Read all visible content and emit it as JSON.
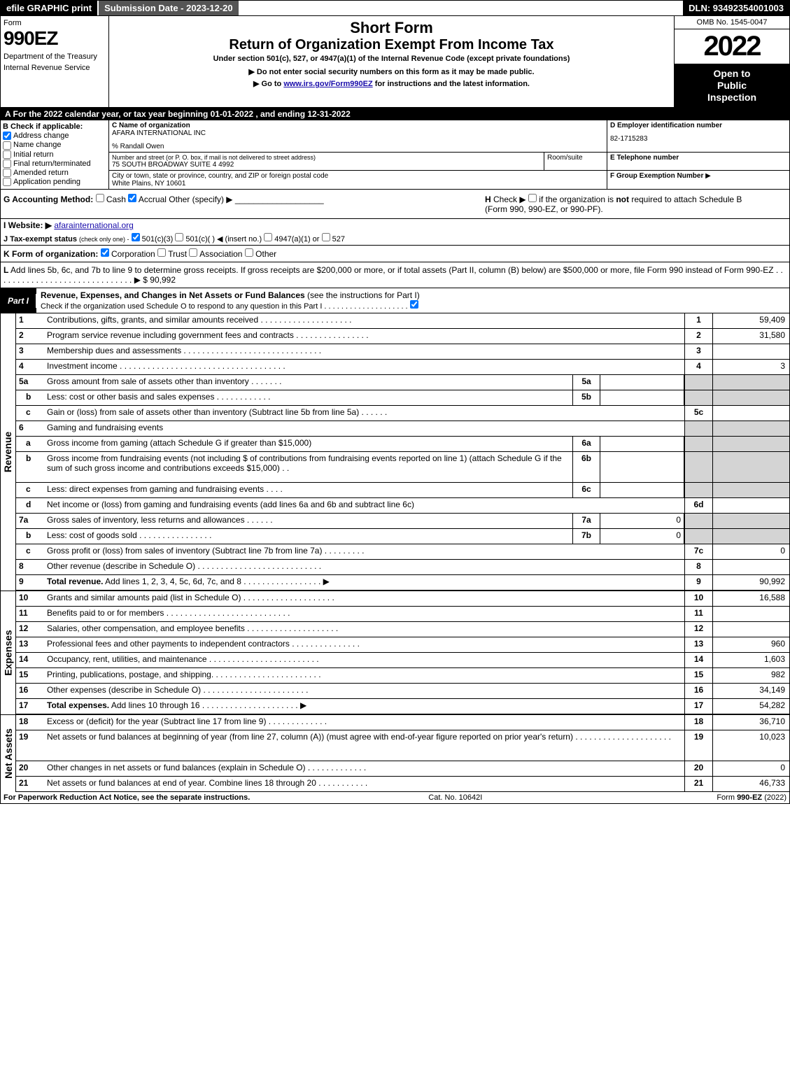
{
  "top_bar": {
    "efile": "efile GRAPHIC print",
    "submission_date": "Submission Date - 2023-12-20",
    "dln": "DLN: 93492354001003"
  },
  "header": {
    "form_label": "Form",
    "form_number": "990EZ",
    "dept1": "Department of the Treasury",
    "dept2": "Internal Revenue Service",
    "short_form": "Short Form",
    "return_title": "Return of Organization Exempt From Income Tax",
    "under": "Under section 501(c), 527, or 4947(a)(1) of the Internal Revenue Code (except private foundations)",
    "donot": "Do not enter social security numbers on this form as it may be made public.",
    "goto_prefix": "Go to ",
    "goto_link": "www.irs.gov/Form990EZ",
    "goto_suffix": " for instructions and the latest information.",
    "omb": "OMB No. 1545-0047",
    "year": "2022",
    "open": "Open to",
    "public": "Public",
    "inspection": "Inspection"
  },
  "section_a": "A  For the 2022 calendar year, or tax year beginning 01-01-2022  , and ending 12-31-2022",
  "section_b": {
    "label": "B  Check if applicable:",
    "items": [
      {
        "label": "Address change",
        "checked": true
      },
      {
        "label": "Name change",
        "checked": false
      },
      {
        "label": "Initial return",
        "checked": false
      },
      {
        "label": "Final return/terminated",
        "checked": false
      },
      {
        "label": "Amended return",
        "checked": false
      },
      {
        "label": "Application pending",
        "checked": false
      }
    ]
  },
  "section_c": {
    "label": "C Name of organization",
    "org_name": "AFARA INTERNATIONAL INC",
    "care_of": "% Randall Owen",
    "addr_label": "Number and street (or P. O. box, if mail is not delivered to street address)",
    "addr": "75 SOUTH BROADWAY SUITE 4 4992",
    "room_label": "Room/suite",
    "room": "",
    "city_label": "City or town, state or province, country, and ZIP or foreign postal code",
    "city": "White Plains, NY  10601"
  },
  "section_d": {
    "label": "D Employer identification number",
    "ein": "82-1715283"
  },
  "section_e": {
    "label": "E Telephone number",
    "phone": ""
  },
  "section_f": {
    "label": "F Group Exemption Number",
    "arrow": "▶",
    "num": ""
  },
  "section_g": {
    "label": "G Accounting Method:",
    "cash": "Cash",
    "accrual": "Accrual",
    "other": "Other (specify) ▶"
  },
  "section_h": {
    "label": "H",
    "text1": "Check ▶",
    "text2": "if the organization is ",
    "not": "not",
    "text3": " required to attach Schedule B",
    "text4": "(Form 990, 990-EZ, or 990-PF)."
  },
  "section_i": {
    "label": "I Website: ▶",
    "url": "afarainternational.org"
  },
  "section_j": {
    "label": "J Tax-exempt status",
    "note": "(check only one) -",
    "opt1": "501(c)(3)",
    "opt2": "501(c)(  ) ◀ (insert no.)",
    "opt3": "4947(a)(1) or",
    "opt4": "527"
  },
  "section_k": {
    "label": "K Form of organization:",
    "corp": "Corporation",
    "trust": "Trust",
    "assoc": "Association",
    "other": "Other"
  },
  "section_l": {
    "label": "L",
    "text": "Add lines 5b, 6c, and 7b to line 9 to determine gross receipts. If gross receipts are $200,000 or more, or if total assets (Part II, column (B) below) are $500,000 or more, file Form 990 instead of Form 990-EZ . . . . . . . . . . . . . . . . . . . . . . . . . . . . . . ▶ $",
    "amount": "90,992"
  },
  "part1": {
    "part_label": "Part I",
    "title_bold": "Revenue, Expenses, and Changes in Net Assets or Fund Balances",
    "title_rest": " (see the instructions for Part I)",
    "check_o": "Check if the organization used Schedule O to respond to any question in this Part I . . . . . . . . . . . . . . . . . . . ."
  },
  "revenue_lines": [
    {
      "num": "1",
      "desc": "Contributions, gifts, grants, and similar amounts received . . . . . . . . . . . . . . . . . . . .",
      "mainnum": "1",
      "val": "59,409"
    },
    {
      "num": "2",
      "desc": "Program service revenue including government fees and contracts . . . . . . . . . . . . . . . .",
      "mainnum": "2",
      "val": "31,580"
    },
    {
      "num": "3",
      "desc": "Membership dues and assessments . . . . . . . . . . . . . . . . . . . . . . . . . . . . . .",
      "mainnum": "3",
      "val": ""
    },
    {
      "num": "4",
      "desc": "Investment income . . . . . . . . . . . . . . . . . . . . . . . . . . . . . . . . . . . .",
      "mainnum": "4",
      "val": "3"
    },
    {
      "num": "5a",
      "desc": "Gross amount from sale of assets other than inventory . . . . . . .",
      "subnum": "5a",
      "subval": "",
      "grey": true
    },
    {
      "num": "b",
      "indent": true,
      "desc": "Less: cost or other basis and sales expenses . . . . . . . . . . . .",
      "subnum": "5b",
      "subval": "",
      "grey": true
    },
    {
      "num": "c",
      "indent": true,
      "desc": "Gain or (loss) from sale of assets other than inventory (Subtract line 5b from line 5a) . . . . . .",
      "mainnum": "5c",
      "val": ""
    },
    {
      "num": "6",
      "desc": "Gaming and fundraising events",
      "grey": true,
      "no_main": true
    },
    {
      "num": "a",
      "indent": true,
      "desc": "Gross income from gaming (attach Schedule G if greater than $15,000)",
      "subnum": "6a",
      "subval": "",
      "grey": true
    },
    {
      "num": "b",
      "indent": true,
      "desc": "Gross income from fundraising events (not including $                    of contributions from fundraising events reported on line 1) (attach Schedule G if the sum of such gross income and contributions exceeds $15,000)   .   .",
      "subnum": "6b",
      "subval": "",
      "grey": true,
      "tall": true
    },
    {
      "num": "c",
      "indent": true,
      "desc": "Less: direct expenses from gaming and fundraising events . . . .",
      "subnum": "6c",
      "subval": "",
      "grey": true
    },
    {
      "num": "d",
      "indent": true,
      "desc": "Net income or (loss) from gaming and fundraising events (add lines 6a and 6b and subtract line 6c)",
      "mainnum": "6d",
      "val": ""
    },
    {
      "num": "7a",
      "desc": "Gross sales of inventory, less returns and allowances . . . . . .",
      "subnum": "7a",
      "subval": "0",
      "grey": true
    },
    {
      "num": "b",
      "indent": true,
      "desc": "Less: cost of goods sold       . . . . . . . . . . . . . . . .",
      "subnum": "7b",
      "subval": "0",
      "grey": true
    },
    {
      "num": "c",
      "indent": true,
      "desc": "Gross profit or (loss) from sales of inventory (Subtract line 7b from line 7a) . . . . . . . . .",
      "mainnum": "7c",
      "val": "0"
    },
    {
      "num": "8",
      "desc": "Other revenue (describe in Schedule O) . . . . . . . . . . . . . . . . . . . . . . . . . . .",
      "mainnum": "8",
      "val": ""
    },
    {
      "num": "9",
      "desc_bold": "Total revenue.",
      "desc": " Add lines 1, 2, 3, 4, 5c, 6d, 7c, and 8  . . . . . . . . . . . . . . . . .    ▶",
      "mainnum": "9",
      "val": "90,992"
    }
  ],
  "expense_lines": [
    {
      "num": "10",
      "desc": "Grants and similar amounts paid (list in Schedule O) . . . . . . . . . . . . . . . . . . . .",
      "mainnum": "10",
      "val": "16,588"
    },
    {
      "num": "11",
      "desc": "Benefits paid to or for members     . . . . . . . . . . . . . . . . . . . . . . . . . . .",
      "mainnum": "11",
      "val": ""
    },
    {
      "num": "12",
      "desc": "Salaries, other compensation, and employee benefits . . . . . . . . . . . . . . . . . . . .",
      "mainnum": "12",
      "val": ""
    },
    {
      "num": "13",
      "desc": "Professional fees and other payments to independent contractors . . . . . . . . . . . . . . .",
      "mainnum": "13",
      "val": "960"
    },
    {
      "num": "14",
      "desc": "Occupancy, rent, utilities, and maintenance . . . . . . . . . . . . . . . . . . . . . . . .",
      "mainnum": "14",
      "val": "1,603"
    },
    {
      "num": "15",
      "desc": "Printing, publications, postage, and shipping. . . . . . . . . . . . . . . . . . . . . . . .",
      "mainnum": "15",
      "val": "982"
    },
    {
      "num": "16",
      "desc": "Other expenses (describe in Schedule O)     . . . . . . . . . . . . . . . . . . . . . . .",
      "mainnum": "16",
      "val": "34,149"
    },
    {
      "num": "17",
      "desc_bold": "Total expenses.",
      "desc": " Add lines 10 through 16     . . . . . . . . . . . . . . . . . . . . .    ▶",
      "mainnum": "17",
      "val": "54,282"
    }
  ],
  "netassets_lines": [
    {
      "num": "18",
      "desc": "Excess or (deficit) for the year (Subtract line 17 from line 9)       . . . . . . . . . . . . .",
      "mainnum": "18",
      "val": "36,710"
    },
    {
      "num": "19",
      "desc": "Net assets or fund balances at beginning of year (from line 27, column (A)) (must agree with end-of-year figure reported on prior year's return) . . . . . . . . . . . . . . . . . . . . .",
      "mainnum": "19",
      "val": "10,023",
      "tall": true
    },
    {
      "num": "20",
      "desc": "Other changes in net assets or fund balances (explain in Schedule O) . . . . . . . . . . . . .",
      "mainnum": "20",
      "val": "0"
    },
    {
      "num": "21",
      "desc": "Net assets or fund balances at end of year. Combine lines 18 through 20 . . . . . . . . . . .",
      "mainnum": "21",
      "val": "46,733"
    }
  ],
  "side_labels": {
    "revenue": "Revenue",
    "expenses": "Expenses",
    "netassets": "Net Assets"
  },
  "footer": {
    "paperwork": "For Paperwork Reduction Act Notice, see the separate instructions.",
    "catno": "Cat. No. 10642I",
    "form_prefix": "Form ",
    "form_bold": "990-EZ",
    "form_suffix": " (2022)"
  },
  "colors": {
    "black": "#000000",
    "white": "#ffffff",
    "grey_cell": "#d4d4d4",
    "link": "#1a0dab",
    "darkgrey": "#555555"
  }
}
